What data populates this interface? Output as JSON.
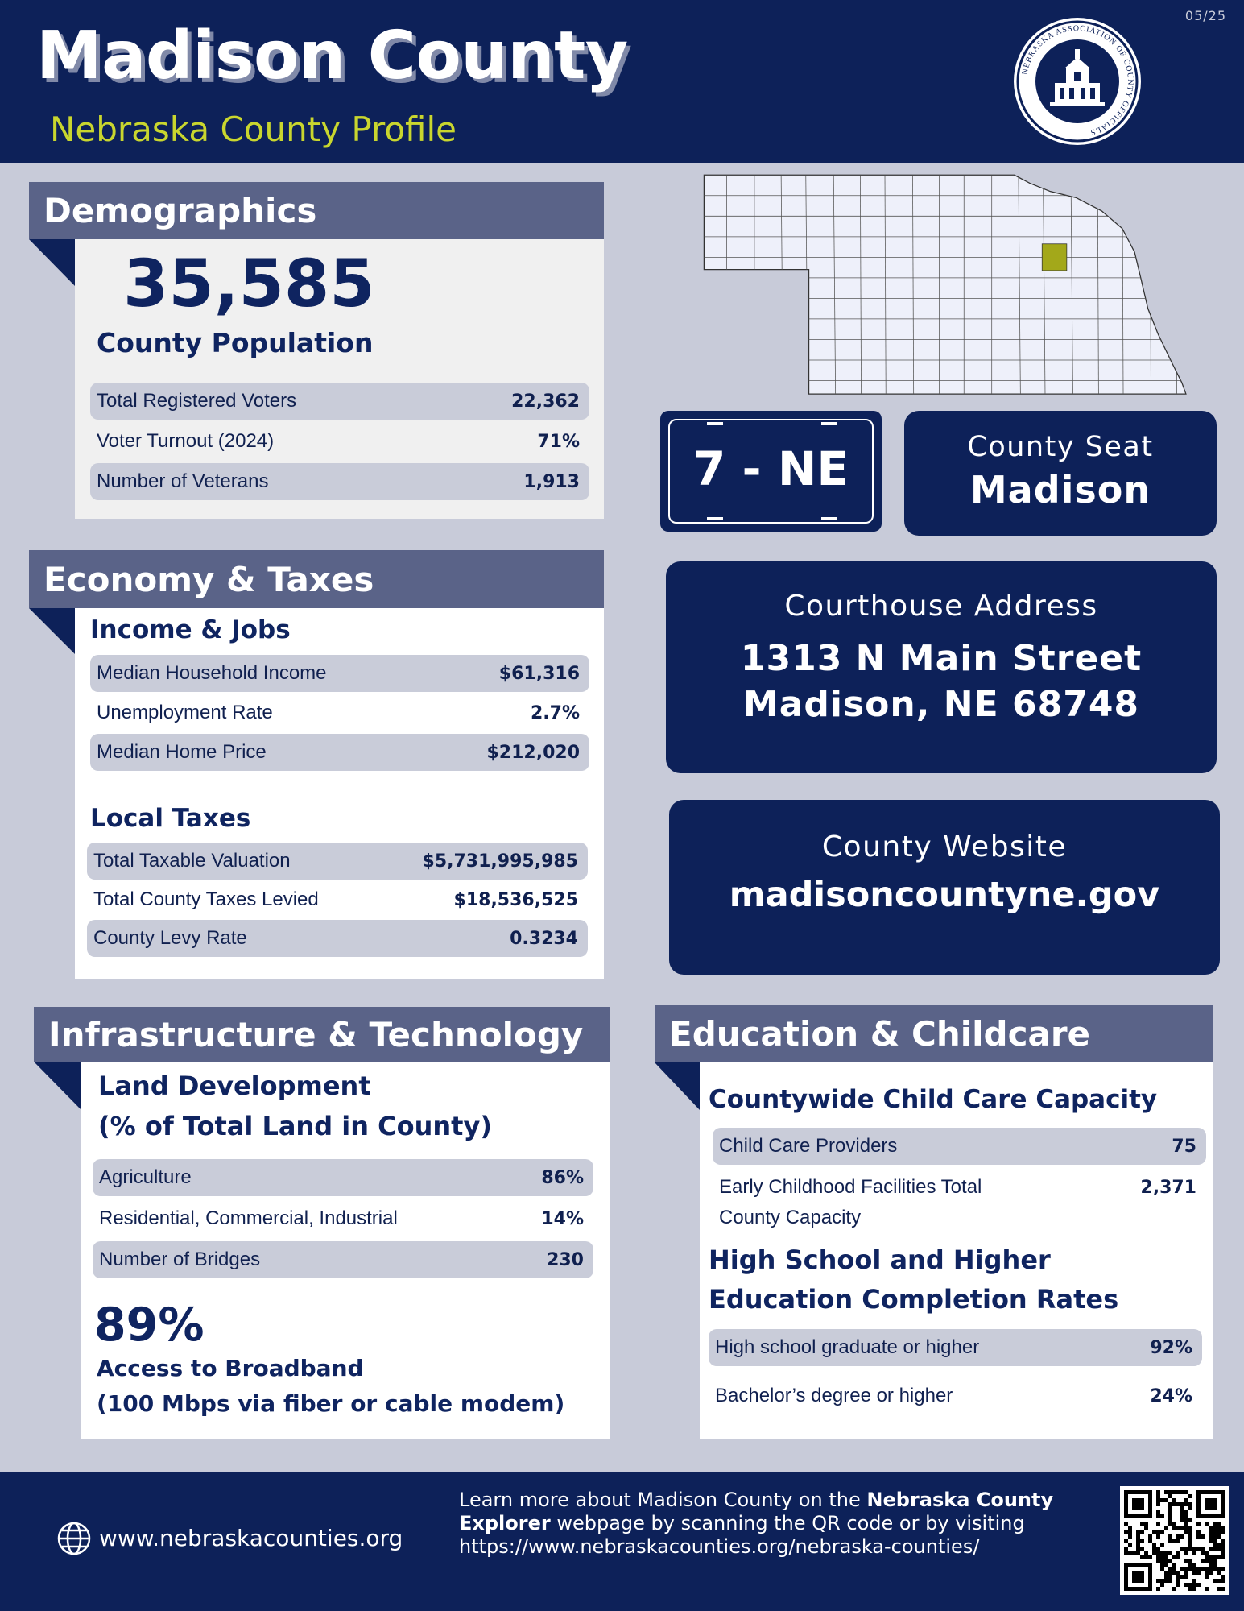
{
  "header": {
    "title": "Madison County",
    "subtitle": "Nebraska County Profile",
    "date": "05/25",
    "logo_text": "NEBRASKA ASSOCIATION OF COUNTY OFFICIALS"
  },
  "demographics": {
    "title": "Demographics",
    "population": "35,585",
    "population_label": "County Population",
    "rows": [
      [
        "Total Registered Voters",
        "22,362"
      ],
      [
        "Voter Turnout (2024)",
        "71%"
      ],
      [
        "Number of Veterans",
        "1,913"
      ]
    ]
  },
  "economy": {
    "title": "Economy & Taxes",
    "income_title": "Income & Jobs",
    "income_rows": [
      [
        "Median Household Income",
        "$61,316"
      ],
      [
        "Unemployment Rate",
        "2.7%"
      ],
      [
        "Median Home Price",
        "$212,020"
      ]
    ],
    "taxes_title": "Local Taxes",
    "taxes_rows": [
      [
        "Total Taxable Valuation",
        "$5,731,995,985"
      ],
      [
        "Total County Taxes Levied",
        "$18,536,525"
      ],
      [
        "County Levy Rate",
        "0.3234"
      ]
    ]
  },
  "plate": "7 - NE",
  "county_seat": {
    "label": "County Seat",
    "value": "Madison"
  },
  "courthouse": {
    "label": "Courthouse Address",
    "lines": [
      "1313 N Main Street",
      "Madison, NE 68748"
    ]
  },
  "website": {
    "label": "County Website",
    "value": "madisoncountyne.gov"
  },
  "infrastructure": {
    "title": "Infrastructure & Technology",
    "land_title": [
      "Land Development",
      "(% of Total Land in County)"
    ],
    "rows": [
      [
        "Agriculture",
        "86%"
      ],
      [
        "Residential, Commercial, Industrial",
        "14%"
      ],
      [
        "Number of Bridges",
        "230"
      ]
    ],
    "broadband": {
      "value": "89%",
      "label": [
        "Access to Broadband",
        "(100 Mbps via fiber or cable modem)"
      ]
    }
  },
  "education": {
    "title": "Education & Childcare",
    "childcare_title": "Countywide Child Care Capacity",
    "childcare_rows": [
      [
        "Child Care Providers",
        "75"
      ],
      [
        "Early Childhood Facilities Total County Capacity",
        "2,371"
      ]
    ],
    "completion_title": [
      "High School and Higher",
      "Education Completion Rates"
    ],
    "completion_rows": [
      [
        "High school graduate or higher",
        "92%"
      ],
      [
        "Bachelor’s degree or higher",
        "24%"
      ]
    ]
  },
  "footer": {
    "website": "www.nebraskacounties.org",
    "note": [
      "Learn more about Madison County on the ",
      "Nebraska County Explorer",
      " webpage by scanning the QR code or by visiting https://www.nebraskacounties.org/nebraska-counties/"
    ]
  }
}
